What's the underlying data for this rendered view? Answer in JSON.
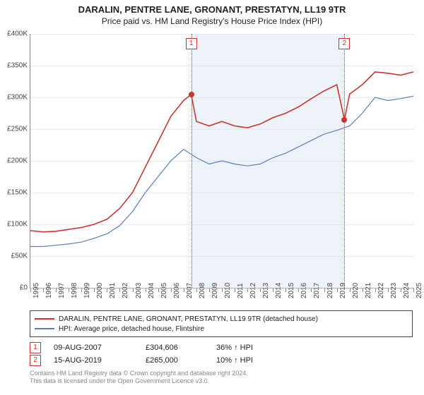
{
  "title": "DARALIN, PENTRE LANE, GRONANT, PRESTATYN, LL19 9TR",
  "subtitle": "Price paid vs. HM Land Registry's House Price Index (HPI)",
  "chart": {
    "type": "line",
    "ylim": [
      0,
      400000
    ],
    "ytick_step": 50000,
    "y_labels": [
      "£0",
      "£50K",
      "£100K",
      "£150K",
      "£200K",
      "£250K",
      "£300K",
      "£350K",
      "£400K"
    ],
    "x_years": [
      1995,
      1996,
      1997,
      1998,
      1999,
      2000,
      2001,
      2002,
      2003,
      2004,
      2005,
      2006,
      2007,
      2008,
      2009,
      2010,
      2011,
      2012,
      2013,
      2014,
      2015,
      2016,
      2017,
      2018,
      2019,
      2020,
      2021,
      2022,
      2023,
      2024,
      2025
    ],
    "background_color": "#ffffff",
    "grid_color": "#dcdcdc",
    "axis_color": "#888888",
    "shade_band_color": "#eef2f9",
    "shade_bands": [
      {
        "start": 2007.6,
        "end": 2019.6
      }
    ],
    "series": [
      {
        "name": "price_paid",
        "color": "#cc3333",
        "width": 1.6,
        "data": [
          [
            1995,
            90000
          ],
          [
            1996,
            88000
          ],
          [
            1997,
            89000
          ],
          [
            1998,
            92000
          ],
          [
            1999,
            95000
          ],
          [
            2000,
            100000
          ],
          [
            2001,
            108000
          ],
          [
            2002,
            125000
          ],
          [
            2003,
            150000
          ],
          [
            2004,
            190000
          ],
          [
            2005,
            230000
          ],
          [
            2006,
            270000
          ],
          [
            2007,
            295000
          ],
          [
            2007.6,
            304606
          ],
          [
            2008,
            262000
          ],
          [
            2009,
            255000
          ],
          [
            2010,
            262000
          ],
          [
            2011,
            255000
          ],
          [
            2012,
            252000
          ],
          [
            2013,
            258000
          ],
          [
            2014,
            268000
          ],
          [
            2015,
            275000
          ],
          [
            2016,
            285000
          ],
          [
            2017,
            298000
          ],
          [
            2018,
            310000
          ],
          [
            2019,
            320000
          ],
          [
            2019.6,
            265000
          ],
          [
            2020,
            305000
          ],
          [
            2021,
            320000
          ],
          [
            2022,
            340000
          ],
          [
            2023,
            338000
          ],
          [
            2024,
            335000
          ],
          [
            2025,
            340000
          ]
        ]
      },
      {
        "name": "hpi",
        "color": "#5a7fb8",
        "width": 1.2,
        "data": [
          [
            1995,
            65000
          ],
          [
            1996,
            65000
          ],
          [
            1997,
            67000
          ],
          [
            1998,
            69000
          ],
          [
            1999,
            72000
          ],
          [
            2000,
            78000
          ],
          [
            2001,
            85000
          ],
          [
            2002,
            98000
          ],
          [
            2003,
            120000
          ],
          [
            2004,
            150000
          ],
          [
            2005,
            175000
          ],
          [
            2006,
            200000
          ],
          [
            2007,
            218000
          ],
          [
            2008,
            205000
          ],
          [
            2009,
            195000
          ],
          [
            2010,
            200000
          ],
          [
            2011,
            195000
          ],
          [
            2012,
            192000
          ],
          [
            2013,
            195000
          ],
          [
            2014,
            205000
          ],
          [
            2015,
            212000
          ],
          [
            2016,
            222000
          ],
          [
            2017,
            232000
          ],
          [
            2018,
            242000
          ],
          [
            2019,
            248000
          ],
          [
            2020,
            255000
          ],
          [
            2021,
            275000
          ],
          [
            2022,
            300000
          ],
          [
            2023,
            295000
          ],
          [
            2024,
            298000
          ],
          [
            2025,
            302000
          ]
        ]
      }
    ],
    "markers": [
      {
        "idx": "1",
        "x": 2007.6,
        "y": 304606,
        "box_top": true
      },
      {
        "idx": "2",
        "x": 2019.6,
        "y": 265000,
        "box_top": true
      }
    ]
  },
  "legend": {
    "items": [
      {
        "color": "#cc3333",
        "label": "DARALIN, PENTRE LANE, GRONANT, PRESTATYN, LL19 9TR (detached house)"
      },
      {
        "color": "#5a7fb8",
        "label": "HPI: Average price, detached house, Flintshire"
      }
    ]
  },
  "records": [
    {
      "idx": "1",
      "date": "09-AUG-2007",
      "price": "£304,606",
      "pct": "36% ↑ HPI"
    },
    {
      "idx": "2",
      "date": "15-AUG-2019",
      "price": "£265,000",
      "pct": "10% ↑ HPI"
    }
  ],
  "licence_line1": "Contains HM Land Registry data © Crown copyright and database right 2024.",
  "licence_line2": "This data is licensed under the Open Government Licence v3.0."
}
